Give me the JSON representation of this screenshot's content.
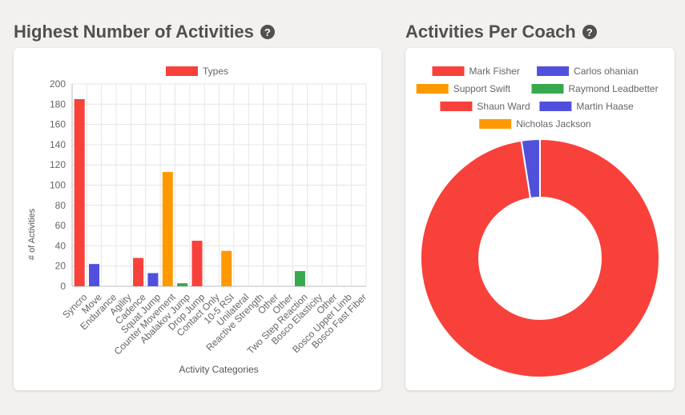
{
  "left_panel": {
    "title": "Highest Number of Activities",
    "help_icon": "question-circle-icon"
  },
  "right_panel": {
    "title": "Activities Per Coach",
    "help_icon": "question-circle-icon"
  },
  "chart_data": [
    {
      "type": "bar",
      "title": "",
      "legend": [
        "Types"
      ],
      "legend_position": "top",
      "xlabel": "Activity Categories",
      "ylabel": "# of Activities",
      "ylim": [
        0,
        200
      ],
      "yticks": [
        0,
        20,
        40,
        60,
        80,
        100,
        120,
        140,
        160,
        180,
        200
      ],
      "grid": true,
      "categories": [
        "Syncro",
        "Move",
        "Endurance",
        "Agility",
        "Cadence",
        "Squat Jump",
        "Counter Movement",
        "Abalakov Jump",
        "Drop Jump",
        "Contact Only",
        "10-5 RSI",
        "Unilateral",
        "Reactive Strength",
        "Other",
        "Other",
        "Two Step Reaction",
        "Bosco Elasticity",
        "Other",
        "Bosco Upper Limb",
        "Bosco Fast Fiber"
      ],
      "values": [
        185,
        22,
        0,
        0,
        28,
        13,
        113,
        3,
        45,
        0,
        35,
        0,
        0,
        0,
        0,
        15,
        0,
        0,
        0,
        0
      ],
      "colors": [
        "#f8413b",
        "#5150dd",
        "#f8413b",
        "#5150dd",
        "#f8413b",
        "#5150dd",
        "#ff9900",
        "#38a94c",
        "#f8413b",
        "#5150dd",
        "#ff9900",
        "#38a94c",
        "#f8413b",
        "#5150dd",
        "#ff9900",
        "#38a94c",
        "#f8413b",
        "#5150dd",
        "#ff9900",
        "#38a94c"
      ],
      "legend_color": "#f8413b"
    },
    {
      "type": "pie",
      "variant": "doughnut",
      "legend_position": "top",
      "labels": [
        "Mark Fisher",
        "Carlos ohanian",
        "Support Swift",
        "Raymond Leadbetter",
        "Shaun Ward",
        "Martin Haase",
        "Nicholas Jackson"
      ],
      "values": [
        97.5,
        2.5,
        0,
        0,
        0,
        0,
        0
      ],
      "colors": [
        "#f8413b",
        "#5150dd",
        "#ff9900",
        "#38a94c",
        "#f8413b",
        "#5150dd",
        "#ff9900"
      ]
    }
  ]
}
